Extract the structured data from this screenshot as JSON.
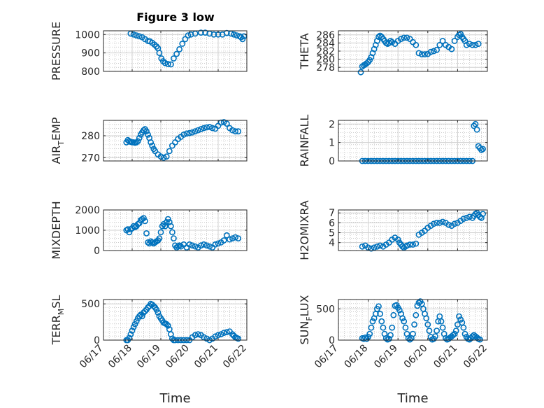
{
  "figure": {
    "title": "Figure 3 low",
    "marker_color": "#0072bd"
  },
  "chart_data": [
    {
      "type": "scatter",
      "title": "Figure 3 low",
      "ylabel": "PRESSURE",
      "ylabel_parts": [
        "PRESSURE"
      ],
      "xlim": [
        0,
        5
      ],
      "ylim": [
        800,
        1020
      ],
      "yticks": [
        800,
        900,
        1000
      ],
      "ytick_labels": [
        "800",
        "900",
        "1000"
      ],
      "xticks": [],
      "xtick_labels": [],
      "xlabel": "",
      "x": [
        0.95,
        1.05,
        1.15,
        1.25,
        1.35,
        1.45,
        1.55,
        1.62,
        1.7,
        1.78,
        1.85,
        1.9,
        1.95,
        2.02,
        2.08,
        2.15,
        2.25,
        2.35,
        2.45,
        2.55,
        2.65,
        2.75,
        2.85,
        2.95,
        3.05,
        3.2,
        3.4,
        3.55,
        3.7,
        3.85,
        4.0,
        4.15,
        4.3,
        4.45,
        4.55,
        4.65,
        4.75,
        4.8,
        4.85,
        4.9
      ],
      "y": [
        1005,
        1000,
        995,
        990,
        985,
        975,
        965,
        963,
        955,
        945,
        935,
        925,
        900,
        870,
        855,
        845,
        840,
        838,
        870,
        895,
        920,
        950,
        975,
        995,
        1000,
        1005,
        1010,
        1010,
        1005,
        1000,
        1000,
        1000,
        1008,
        1005,
        1000,
        995,
        990,
        985,
        975,
        990
      ]
    },
    {
      "type": "scatter",
      "title": "",
      "ylabel": "THETA",
      "ylabel_parts": [
        "THETA"
      ],
      "xlim": [
        0,
        5
      ],
      "ylim": [
        277,
        287
      ],
      "yticks": [
        278,
        280,
        282,
        284,
        286
      ],
      "ytick_labels": [
        "278",
        "280",
        "282",
        "284",
        "286"
      ],
      "xticks": [],
      "xtick_labels": [],
      "xlabel": "",
      "x": [
        0.75,
        0.8,
        0.85,
        0.9,
        0.95,
        1.0,
        1.05,
        1.1,
        1.15,
        1.2,
        1.25,
        1.3,
        1.35,
        1.4,
        1.45,
        1.5,
        1.55,
        1.6,
        1.65,
        1.7,
        1.75,
        1.8,
        1.9,
        2.0,
        2.1,
        2.2,
        2.3,
        2.4,
        2.5,
        2.6,
        2.7,
        2.8,
        2.9,
        3.0,
        3.1,
        3.2,
        3.3,
        3.4,
        3.5,
        3.6,
        3.7,
        3.8,
        3.9,
        4.0,
        4.05,
        4.1,
        4.15,
        4.2,
        4.25,
        4.3,
        4.4,
        4.5,
        4.6,
        4.7
      ],
      "y": [
        276.8,
        278.2,
        278.5,
        278.7,
        279,
        279.3,
        279.8,
        280.5,
        281.5,
        282.5,
        283.5,
        284.5,
        285.5,
        285.8,
        285.5,
        285,
        284.5,
        284,
        283.8,
        284,
        284.5,
        284.2,
        283.8,
        284.5,
        285,
        285.3,
        285.3,
        285,
        284.2,
        283.5,
        281.5,
        281.2,
        281.2,
        281.3,
        281.8,
        282,
        282.3,
        283.5,
        284.5,
        283.5,
        283,
        282.5,
        284.5,
        285.5,
        286,
        286.2,
        285.5,
        285,
        284.5,
        283.5,
        283.8,
        283.5,
        283.5,
        283.8
      ]
    },
    {
      "type": "scatter",
      "title": "",
      "ylabel": "AIR_TEMP",
      "ylabel_parts": [
        "AIR",
        "T",
        "EMP"
      ],
      "xlim": [
        0,
        5
      ],
      "ylim": [
        268.5,
        287
      ],
      "yticks": [
        270,
        280
      ],
      "ytick_labels": [
        "270",
        "280"
      ],
      "xticks": [],
      "xtick_labels": [],
      "xlabel": "",
      "x": [
        0.8,
        0.85,
        0.9,
        0.95,
        1.0,
        1.05,
        1.1,
        1.15,
        1.2,
        1.25,
        1.3,
        1.35,
        1.4,
        1.45,
        1.5,
        1.55,
        1.6,
        1.65,
        1.7,
        1.75,
        1.8,
        1.9,
        2.0,
        2.1,
        2.2,
        2.3,
        2.4,
        2.5,
        2.6,
        2.7,
        2.8,
        2.9,
        3.0,
        3.1,
        3.2,
        3.3,
        3.4,
        3.5,
        3.6,
        3.7,
        3.8,
        3.9,
        4.0,
        4.1,
        4.2,
        4.3,
        4.4,
        4.5,
        4.6,
        4.7
      ],
      "y": [
        277,
        278,
        277.5,
        277.2,
        277,
        277,
        276.8,
        277,
        277.5,
        279,
        280.5,
        281.5,
        282.5,
        283,
        282,
        280.5,
        279,
        277,
        275.5,
        274,
        273,
        271.5,
        270.5,
        270,
        270.5,
        273,
        275.5,
        277,
        278.5,
        279.5,
        280.5,
        281,
        281.2,
        281.5,
        282,
        282.5,
        283,
        283.5,
        283.8,
        284,
        283.5,
        283.2,
        284.5,
        286,
        286.2,
        285.5,
        283.5,
        282.5,
        282,
        282
      ]
    },
    {
      "type": "scatter",
      "title": "",
      "ylabel": "RAINFALL",
      "ylabel_parts": [
        "RAINFALL"
      ],
      "xlim": [
        0,
        5
      ],
      "ylim": [
        0,
        2.2
      ],
      "yticks": [
        0,
        1,
        2
      ],
      "ytick_labels": [
        "0",
        "1",
        "2"
      ],
      "xticks": [],
      "xtick_labels": [],
      "xlabel": "",
      "x": [
        0.8,
        0.9,
        1.0,
        1.1,
        1.2,
        1.3,
        1.4,
        1.5,
        1.6,
        1.7,
        1.8,
        1.9,
        2.0,
        2.1,
        2.2,
        2.3,
        2.4,
        2.5,
        2.6,
        2.7,
        2.8,
        2.9,
        3.0,
        3.1,
        3.2,
        3.3,
        3.4,
        3.5,
        3.6,
        3.7,
        3.8,
        3.9,
        4.0,
        4.1,
        4.2,
        4.3,
        4.4,
        4.5,
        4.55,
        4.6,
        4.65,
        4.7,
        4.75,
        4.8,
        4.85
      ],
      "y": [
        0,
        0,
        0,
        0,
        0,
        0,
        0,
        0,
        0,
        0,
        0,
        0,
        0,
        0,
        0,
        0,
        0,
        0,
        0,
        0,
        0,
        0,
        0,
        0,
        0,
        0,
        0,
        0,
        0,
        0,
        0,
        0,
        0,
        0,
        0,
        0,
        0,
        0,
        1.9,
        2.0,
        1.7,
        0.8,
        0.7,
        0.6,
        0.65
      ]
    },
    {
      "type": "scatter",
      "title": "",
      "ylabel": "MIXDEPTH",
      "ylabel_parts": [
        "MIXDEPTH"
      ],
      "xlim": [
        0,
        5
      ],
      "ylim": [
        0,
        2000
      ],
      "yticks": [
        0,
        1000,
        2000
      ],
      "ytick_labels": [
        "0",
        "1000",
        "2000"
      ],
      "xticks": [],
      "xtick_labels": [],
      "xlabel": "",
      "x": [
        0.8,
        0.85,
        0.9,
        0.95,
        1.0,
        1.05,
        1.1,
        1.15,
        1.2,
        1.25,
        1.3,
        1.35,
        1.4,
        1.45,
        1.5,
        1.55,
        1.6,
        1.65,
        1.7,
        1.75,
        1.8,
        1.85,
        1.9,
        1.95,
        2.0,
        2.05,
        2.1,
        2.15,
        2.2,
        2.25,
        2.3,
        2.35,
        2.4,
        2.45,
        2.5,
        2.55,
        2.6,
        2.65,
        2.7,
        2.8,
        2.9,
        3.0,
        3.1,
        3.2,
        3.3,
        3.4,
        3.5,
        3.6,
        3.7,
        3.8,
        3.9,
        4.0,
        4.1,
        4.2,
        4.3,
        4.4,
        4.5,
        4.6,
        4.7
      ],
      "y": [
        1000,
        1050,
        900,
        1050,
        1100,
        1200,
        1150,
        1200,
        1300,
        1350,
        1500,
        1550,
        1600,
        1450,
        850,
        400,
        350,
        450,
        400,
        350,
        400,
        450,
        500,
        600,
        900,
        1200,
        1300,
        1200,
        1400,
        1550,
        1400,
        1200,
        900,
        600,
        250,
        150,
        200,
        250,
        200,
        300,
        150,
        300,
        250,
        200,
        150,
        250,
        300,
        250,
        200,
        150,
        300,
        350,
        400,
        500,
        750,
        550,
        600,
        650,
        600
      ]
    },
    {
      "type": "scatter",
      "title": "",
      "ylabel": "H2OMIXRA",
      "ylabel_parts": [
        "H2OMIXRA"
      ],
      "xlim": [
        0,
        5
      ],
      "ylim": [
        3.2,
        7.3
      ],
      "yticks": [
        4,
        5,
        6,
        7
      ],
      "ytick_labels": [
        "4",
        "5",
        "6",
        "7"
      ],
      "xticks": [],
      "xtick_labels": [],
      "xlabel": "",
      "x": [
        0.8,
        0.9,
        1.0,
        1.1,
        1.2,
        1.3,
        1.4,
        1.5,
        1.6,
        1.7,
        1.8,
        1.9,
        2.0,
        2.05,
        2.1,
        2.15,
        2.2,
        2.25,
        2.3,
        2.4,
        2.5,
        2.6,
        2.7,
        2.8,
        2.9,
        3.0,
        3.1,
        3.2,
        3.3,
        3.4,
        3.5,
        3.6,
        3.7,
        3.8,
        3.9,
        4.0,
        4.1,
        4.2,
        4.3,
        4.4,
        4.5,
        4.55,
        4.6,
        4.65,
        4.7,
        4.75,
        4.8,
        4.85
      ],
      "y": [
        3.6,
        3.7,
        3.5,
        3.4,
        3.5,
        3.6,
        3.7,
        3.6,
        3.8,
        4.0,
        4.3,
        4.5,
        4.3,
        4.0,
        3.8,
        3.6,
        3.5,
        3.6,
        3.7,
        3.8,
        3.8,
        3.9,
        4.8,
        5.0,
        5.2,
        5.5,
        5.7,
        5.9,
        6.0,
        6.0,
        6.1,
        6.0,
        5.8,
        5.7,
        5.9,
        6.0,
        6.2,
        6.4,
        6.5,
        6.6,
        6.5,
        6.7,
        6.9,
        7.0,
        6.8,
        6.6,
        6.5,
        6.9
      ]
    },
    {
      "type": "scatter",
      "title": "",
      "ylabel": "TERR_MSL",
      "ylabel_parts": [
        "TERR",
        "M",
        "SL"
      ],
      "xlim": [
        0,
        5
      ],
      "ylim": [
        0,
        560
      ],
      "yticks": [
        0,
        500
      ],
      "ytick_labels": [
        "0",
        "500"
      ],
      "xticks": [
        0,
        1,
        2,
        3,
        4,
        5
      ],
      "xtick_labels": [
        "06/17",
        "06/18",
        "06/19",
        "06/20",
        "06/21",
        "06/22"
      ],
      "xlabel": "Time",
      "x": [
        0.8,
        0.85,
        0.9,
        0.95,
        1.0,
        1.05,
        1.1,
        1.15,
        1.2,
        1.25,
        1.3,
        1.35,
        1.4,
        1.45,
        1.5,
        1.55,
        1.6,
        1.65,
        1.7,
        1.75,
        1.8,
        1.85,
        1.9,
        1.95,
        2.0,
        2.05,
        2.1,
        2.15,
        2.2,
        2.25,
        2.3,
        2.35,
        2.4,
        2.45,
        2.5,
        2.6,
        2.7,
        2.8,
        2.9,
        3.0,
        3.1,
        3.2,
        3.3,
        3.4,
        3.5,
        3.6,
        3.7,
        3.8,
        3.9,
        4.0,
        4.1,
        4.2,
        4.3,
        4.4,
        4.5,
        4.55,
        4.6,
        4.65,
        4.7
      ],
      "y": [
        0,
        0,
        30,
        80,
        130,
        180,
        220,
        260,
        300,
        330,
        350,
        330,
        380,
        400,
        420,
        450,
        470,
        500,
        490,
        470,
        450,
        420,
        380,
        330,
        300,
        270,
        240,
        230,
        220,
        200,
        150,
        80,
        20,
        0,
        0,
        0,
        0,
        0,
        0,
        0,
        40,
        70,
        80,
        70,
        40,
        20,
        0,
        20,
        50,
        70,
        80,
        100,
        110,
        120,
        80,
        60,
        40,
        30,
        20
      ]
    },
    {
      "type": "scatter",
      "title": "",
      "ylabel": "SUN_FLUX",
      "ylabel_parts": [
        "SUN",
        "F",
        "LUX"
      ],
      "xlim": [
        0,
        5
      ],
      "ylim": [
        0,
        650
      ],
      "yticks": [
        0,
        500
      ],
      "ytick_labels": [
        "0",
        "500"
      ],
      "xticks": [
        0,
        1,
        2,
        3,
        4,
        5
      ],
      "xtick_labels": [
        "06/17",
        "06/18",
        "06/19",
        "06/20",
        "06/21",
        "06/22"
      ],
      "xlabel": "Time",
      "x": [
        0.8,
        0.85,
        0.9,
        0.95,
        1.0,
        1.05,
        1.1,
        1.15,
        1.2,
        1.25,
        1.3,
        1.35,
        1.4,
        1.45,
        1.5,
        1.55,
        1.6,
        1.65,
        1.7,
        1.75,
        1.8,
        1.85,
        1.9,
        1.95,
        2.0,
        2.05,
        2.1,
        2.15,
        2.2,
        2.25,
        2.3,
        2.35,
        2.4,
        2.45,
        2.5,
        2.55,
        2.6,
        2.65,
        2.7,
        2.75,
        2.8,
        2.85,
        2.9,
        2.95,
        3.0,
        3.05,
        3.1,
        3.15,
        3.2,
        3.25,
        3.3,
        3.35,
        3.4,
        3.45,
        3.5,
        3.55,
        3.6,
        3.65,
        3.7,
        3.75,
        3.8,
        3.85,
        3.9,
        3.95,
        4.0,
        4.05,
        4.1,
        4.15,
        4.2,
        4.25,
        4.3,
        4.35,
        4.4,
        4.45,
        4.5,
        4.55,
        4.6,
        4.65,
        4.7,
        4.75
      ],
      "y": [
        30,
        20,
        40,
        20,
        50,
        100,
        200,
        300,
        350,
        420,
        500,
        540,
        420,
        300,
        200,
        100,
        30,
        10,
        20,
        80,
        200,
        400,
        550,
        560,
        520,
        480,
        420,
        350,
        300,
        200,
        100,
        30,
        10,
        30,
        100,
        250,
        400,
        550,
        600,
        620,
        580,
        500,
        420,
        350,
        250,
        150,
        50,
        10,
        20,
        60,
        150,
        300,
        380,
        300,
        200,
        100,
        30,
        10,
        20,
        40,
        60,
        80,
        100,
        150,
        250,
        380,
        330,
        280,
        200,
        100,
        50,
        20,
        10,
        30,
        60,
        80,
        60,
        40,
        20,
        10
      ]
    }
  ]
}
